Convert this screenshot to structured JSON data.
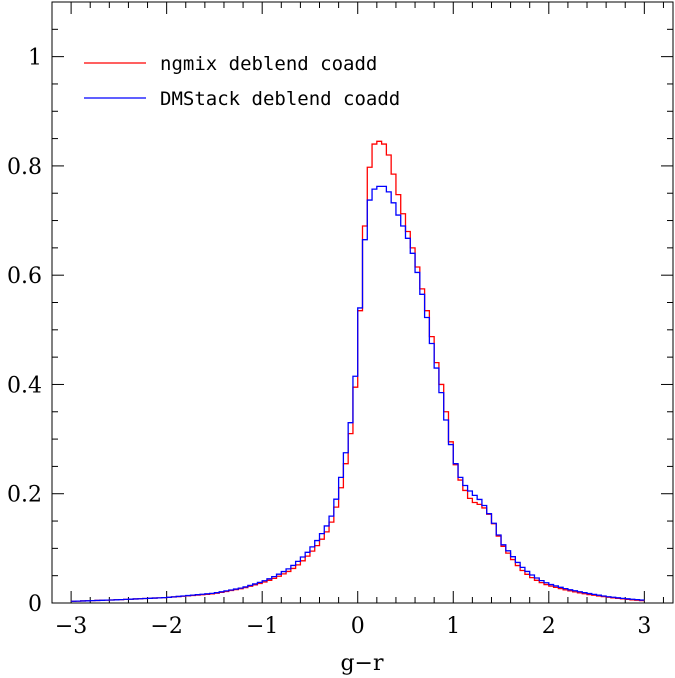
{
  "chart_data": {
    "type": "line",
    "style": "step-histogram",
    "title": "",
    "xlabel": "g−r",
    "ylabel": "",
    "xlim": [
      -3.2,
      3.3
    ],
    "ylim": [
      0,
      1.1
    ],
    "xticks": [
      -3,
      -2,
      -1,
      0,
      1,
      2,
      3
    ],
    "xtick_labels": [
      "−3",
      "−2",
      "−1",
      "0",
      "1",
      "2",
      "3"
    ],
    "yticks": [
      0,
      0.2,
      0.4,
      0.6,
      0.8,
      1
    ],
    "ytick_labels": [
      "0",
      "0.2",
      "0.4",
      "0.6",
      "0.8",
      "1"
    ],
    "grid": false,
    "legend_position": "top-left",
    "series": [
      {
        "name": "ngmix deblend coadd",
        "color": "#ff0000",
        "x": [
          -3.0,
          -2.5,
          -2.0,
          -1.5,
          -1.2,
          -1.0,
          -0.9,
          -0.8,
          -0.7,
          -0.6,
          -0.5,
          -0.4,
          -0.3,
          -0.25,
          -0.2,
          -0.15,
          -0.1,
          -0.05,
          0.0,
          0.05,
          0.1,
          0.15,
          0.2,
          0.25,
          0.3,
          0.35,
          0.4,
          0.45,
          0.5,
          0.55,
          0.6,
          0.65,
          0.7,
          0.75,
          0.8,
          0.85,
          0.9,
          0.95,
          1.0,
          1.05,
          1.1,
          1.15,
          1.2,
          1.25,
          1.3,
          1.35,
          1.4,
          1.45,
          1.5,
          1.6,
          1.7,
          1.8,
          1.9,
          2.0,
          2.2,
          2.4,
          2.6,
          2.8,
          3.0
        ],
        "values": [
          0.003,
          0.006,
          0.01,
          0.017,
          0.027,
          0.037,
          0.043,
          0.051,
          0.06,
          0.073,
          0.09,
          0.11,
          0.137,
          0.159,
          0.192,
          0.23,
          0.28,
          0.34,
          0.45,
          0.62,
          0.76,
          0.835,
          0.845,
          0.845,
          0.835,
          0.805,
          0.765,
          0.73,
          0.695,
          0.665,
          0.635,
          0.595,
          0.555,
          0.515,
          0.46,
          0.42,
          0.38,
          0.32,
          0.27,
          0.236,
          0.214,
          0.198,
          0.185,
          0.183,
          0.178,
          0.17,
          0.155,
          0.135,
          0.11,
          0.085,
          0.063,
          0.049,
          0.039,
          0.032,
          0.023,
          0.016,
          0.011,
          0.007,
          0.004
        ]
      },
      {
        "name": "DMStack deblend coadd",
        "color": "#0000ff",
        "x": [
          -3.0,
          -2.5,
          -2.0,
          -1.5,
          -1.2,
          -1.0,
          -0.9,
          -0.8,
          -0.7,
          -0.6,
          -0.5,
          -0.4,
          -0.3,
          -0.25,
          -0.2,
          -0.15,
          -0.1,
          -0.05,
          0.0,
          0.05,
          0.1,
          0.15,
          0.2,
          0.25,
          0.3,
          0.35,
          0.4,
          0.45,
          0.5,
          0.55,
          0.6,
          0.65,
          0.7,
          0.75,
          0.8,
          0.85,
          0.9,
          0.95,
          1.0,
          1.05,
          1.1,
          1.15,
          1.2,
          1.25,
          1.3,
          1.35,
          1.4,
          1.45,
          1.5,
          1.6,
          1.7,
          1.8,
          1.9,
          2.0,
          2.2,
          2.4,
          2.6,
          2.8,
          3.0
        ],
        "values": [
          0.003,
          0.006,
          0.01,
          0.018,
          0.028,
          0.039,
          0.046,
          0.055,
          0.065,
          0.08,
          0.097,
          0.12,
          0.148,
          0.17,
          0.21,
          0.25,
          0.3,
          0.36,
          0.47,
          0.61,
          0.72,
          0.755,
          0.76,
          0.765,
          0.76,
          0.745,
          0.72,
          0.7,
          0.68,
          0.655,
          0.625,
          0.585,
          0.545,
          0.5,
          0.45,
          0.41,
          0.36,
          0.31,
          0.27,
          0.24,
          0.22,
          0.21,
          0.2,
          0.194,
          0.185,
          0.172,
          0.155,
          0.137,
          0.112,
          0.09,
          0.069,
          0.054,
          0.043,
          0.035,
          0.025,
          0.018,
          0.012,
          0.008,
          0.005
        ]
      }
    ]
  }
}
